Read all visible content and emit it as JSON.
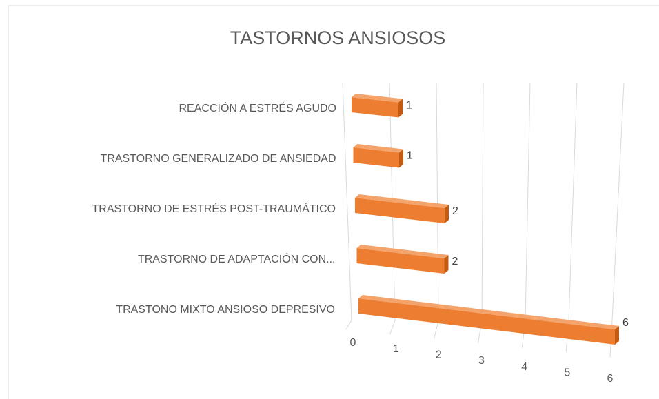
{
  "chart_data": {
    "type": "bar",
    "orientation": "horizontal",
    "title": "TASTORNOS ANSIOSOS",
    "categories": [
      "REACCIÓN A ESTRÉS AGUDO",
      "TRASTORNO GENERALIZADO DE ANSIEDAD",
      "TRASTORNO DE ESTRÉS POST-TRAUMÁTICO",
      "TRASTORNO DE ADAPTACIÓN CON...",
      "TRASTONO MIXTO ANSIOSO DEPRESIVO"
    ],
    "values": [
      1,
      1,
      2,
      2,
      6
    ],
    "color": "#ed7d31",
    "xlim": [
      0,
      6
    ],
    "xticks": [
      0,
      1,
      2,
      3,
      4,
      5,
      6
    ],
    "grid": true
  }
}
